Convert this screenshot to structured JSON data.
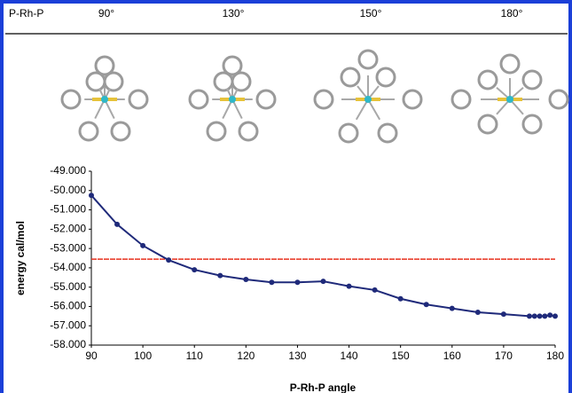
{
  "header": {
    "labels": [
      "P-Rh-P",
      "90°",
      "130°",
      "150°",
      "180°"
    ]
  },
  "chart_data": {
    "type": "line",
    "y_label": "energy cal/mol",
    "x_label": "P-Rh-P angle",
    "x": [
      90,
      95,
      100,
      105,
      110,
      115,
      120,
      125,
      130,
      135,
      140,
      145,
      150,
      155,
      160,
      165,
      170,
      175,
      176,
      177,
      178,
      179,
      180
    ],
    "series": [
      {
        "color": "#1f2a7a",
        "values": [
          -50.25,
          -51.75,
          -52.85,
          -53.6,
          -54.1,
          -54.4,
          -54.6,
          -54.75,
          -54.75,
          -54.7,
          -54.95,
          -55.15,
          -55.6,
          -55.9,
          -56.1,
          -56.3,
          -56.4,
          -56.5,
          -56.5,
          -56.5,
          -56.5,
          -56.45,
          -56.5
        ]
      }
    ],
    "hline": {
      "value": -53.55,
      "color": "#e8321e"
    },
    "xlim": [
      90,
      180
    ],
    "xticks": [
      90,
      100,
      110,
      120,
      130,
      140,
      150,
      160,
      170,
      180
    ],
    "ylim": [
      -58,
      -49
    ],
    "yticks": [
      {
        "value": -49,
        "label": "-49.000"
      },
      {
        "value": -50,
        "label": "-50.000"
      },
      {
        "value": -51,
        "label": "-51.000"
      },
      {
        "value": -52,
        "label": "-52.000"
      },
      {
        "value": -53,
        "label": "-53.000"
      },
      {
        "value": -54,
        "label": "-54.000"
      },
      {
        "value": -55,
        "label": "-55.000"
      },
      {
        "value": -56,
        "label": "-56.000"
      },
      {
        "value": -57,
        "label": "-57.000"
      },
      {
        "value": -58,
        "label": "-58.000"
      }
    ]
  }
}
